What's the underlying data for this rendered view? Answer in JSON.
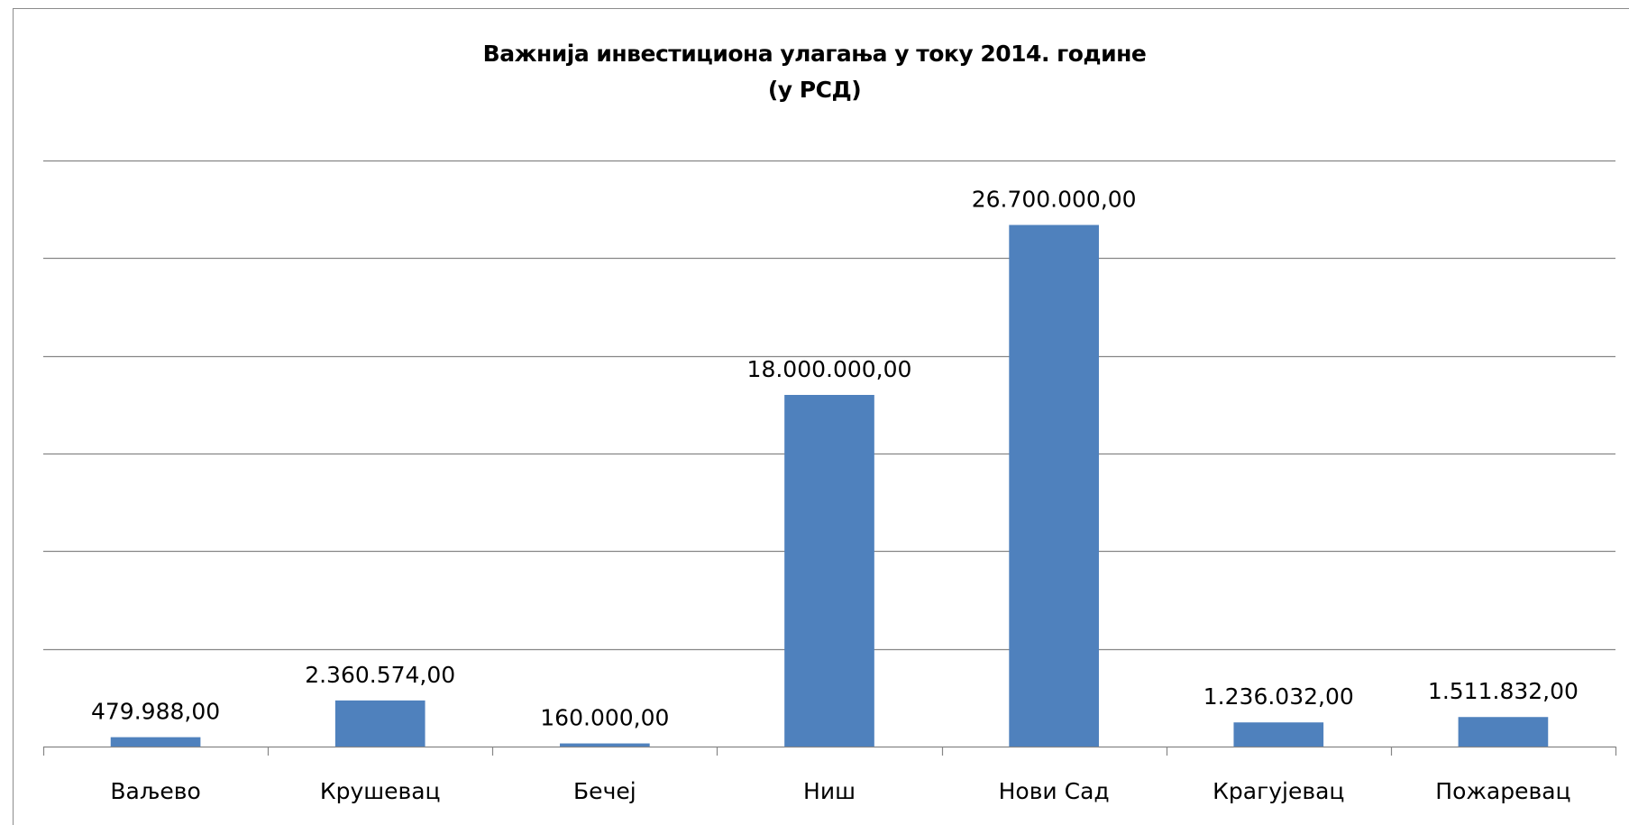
{
  "chart_data": {
    "type": "bar",
    "title": "Важнија инвестициона улагања у току 2014. године",
    "subtitle": "(у РСД)",
    "xlabel": "",
    "ylabel": "",
    "categories": [
      "Ваљево",
      "Крушевац",
      "Бечеј",
      "Ниш",
      "Нови Сад",
      "Крагујевац",
      "Пожаревац"
    ],
    "values": [
      479988,
      2360574,
      160000,
      18000000,
      26700000,
      1236032,
      1511832
    ],
    "data_labels": [
      "479.988,00",
      "2.360.574,00",
      "160.000,00",
      "18.000.000,00",
      "26.700.000,00",
      "1.236.032,00",
      "1.511.832,00"
    ],
    "ylim": [
      0,
      30000000
    ],
    "y_gridlines": [
      0,
      5000000,
      10000000,
      15000000,
      20000000,
      25000000,
      30000000
    ],
    "grid": true,
    "y_tick_labels_shown": false,
    "legend": "none",
    "bar_color": "#4f81bd",
    "gridline_color": "#868686"
  }
}
